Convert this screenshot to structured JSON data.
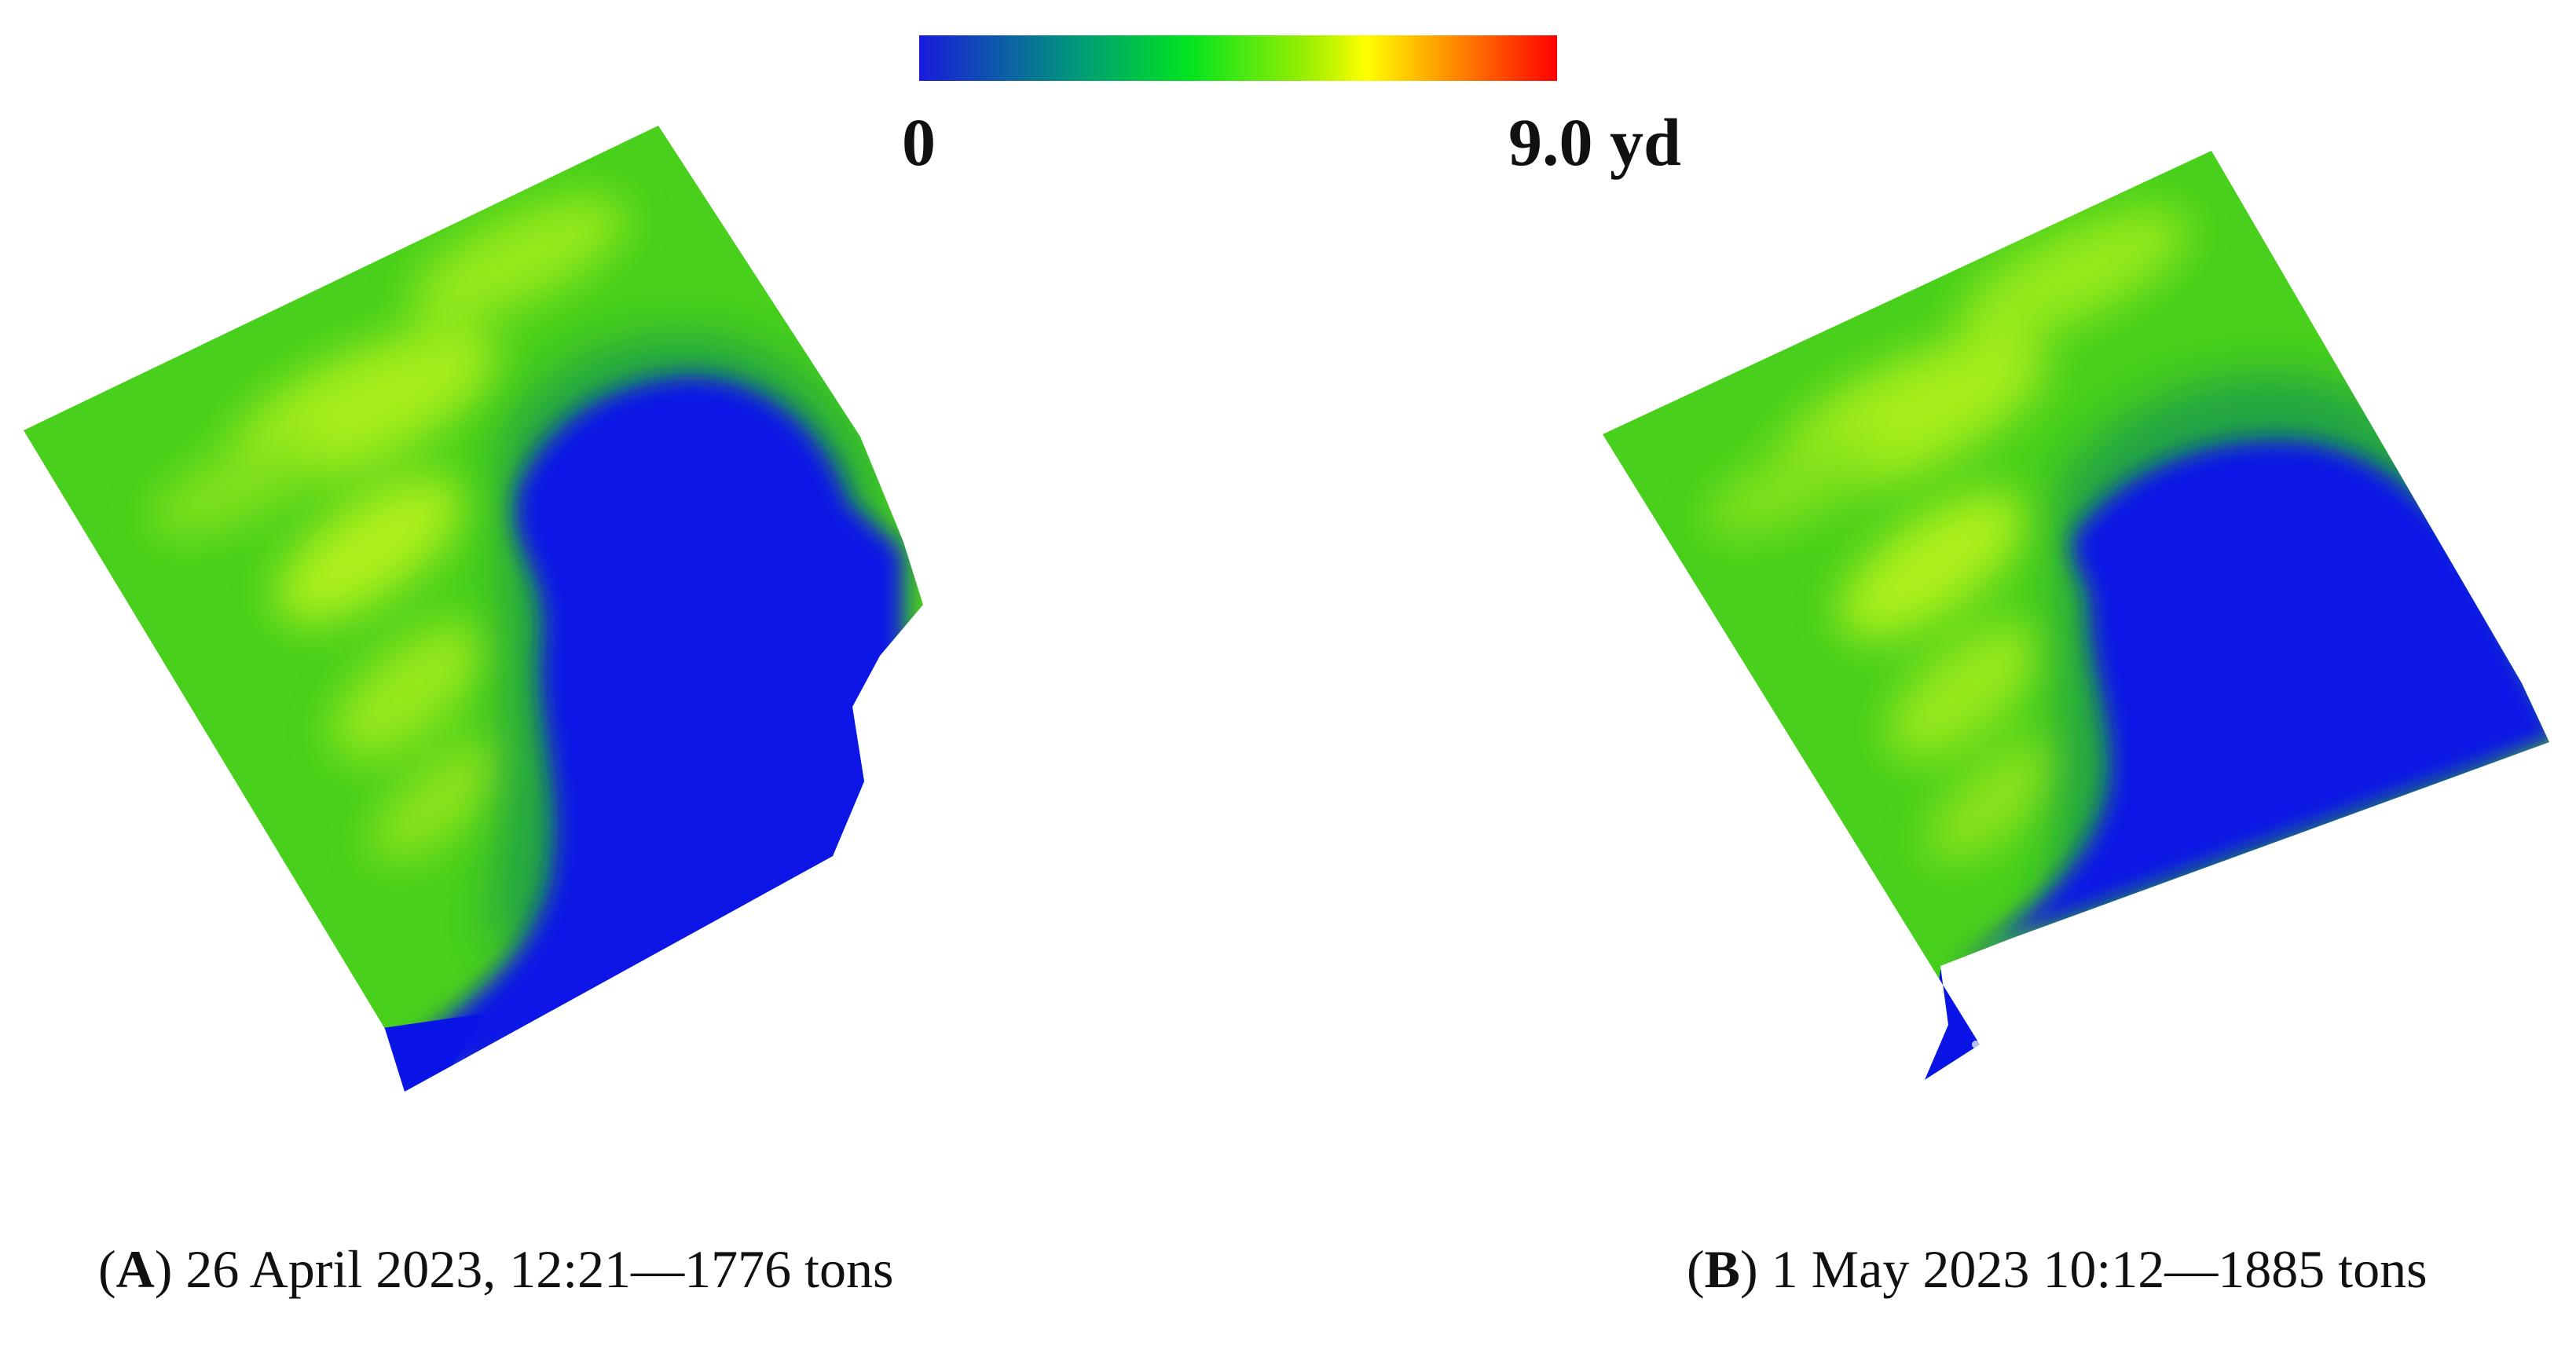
{
  "colorbar": {
    "min_label": "0",
    "max_label": "9.0 yd",
    "colors": [
      "#1a1adc",
      "#00e31f",
      "#ffff00",
      "#ff7a00",
      "#ff0000"
    ]
  },
  "panels": [
    {
      "id": "A",
      "letter": "A",
      "caption_text": " 26 April 2023, 12:21—1776 tons"
    },
    {
      "id": "B",
      "letter": "B",
      "caption_text": " 1 May 2023 10:12—1885 tons"
    }
  ],
  "colors": {
    "low_blue": "#0a14e6",
    "mid_green": "#3cd21e",
    "high_yellow": "#e6f514"
  }
}
